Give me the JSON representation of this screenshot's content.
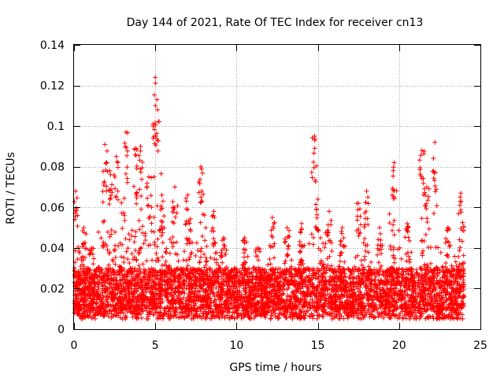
{
  "chart_data": {
    "type": "scatter",
    "title": "Day 144 of 2021, Rate Of TEC Index for receiver cn13",
    "xlabel": "GPS time / hours",
    "ylabel": "ROTI / TECUs",
    "xlim": [
      0,
      25
    ],
    "ylim": [
      0,
      0.14
    ],
    "xticks": [
      0,
      5,
      10,
      15,
      20,
      25
    ],
    "yticks": [
      0,
      0.02,
      0.04,
      0.06,
      0.08,
      0.1,
      0.12,
      0.14
    ],
    "xtick_labels": [
      "0",
      "5",
      "10",
      "15",
      "20",
      "25"
    ],
    "ytick_labels": [
      "0",
      "0.02",
      "0.04",
      "0.06",
      "0.08",
      "0.1",
      "0.12",
      "0.14"
    ],
    "grid": true,
    "marker": "+",
    "color": "#ff0000",
    "series": [
      {
        "name": "ROTI",
        "peaks": [
          {
            "x": 0.1,
            "y": 0.068
          },
          {
            "x": 0.6,
            "y": 0.05
          },
          {
            "x": 1.1,
            "y": 0.04
          },
          {
            "x": 1.9,
            "y": 0.091
          },
          {
            "x": 2.2,
            "y": 0.078
          },
          {
            "x": 2.6,
            "y": 0.085
          },
          {
            "x": 3.2,
            "y": 0.097
          },
          {
            "x": 3.8,
            "y": 0.089
          },
          {
            "x": 4.1,
            "y": 0.09
          },
          {
            "x": 4.6,
            "y": 0.075
          },
          {
            "x": 5.0,
            "y": 0.124
          },
          {
            "x": 5.1,
            "y": 0.113
          },
          {
            "x": 5.4,
            "y": 0.066
          },
          {
            "x": 6.2,
            "y": 0.07
          },
          {
            "x": 7.0,
            "y": 0.066
          },
          {
            "x": 7.8,
            "y": 0.08
          },
          {
            "x": 8.6,
            "y": 0.058
          },
          {
            "x": 9.2,
            "y": 0.045
          },
          {
            "x": 10.5,
            "y": 0.045
          },
          {
            "x": 11.3,
            "y": 0.04
          },
          {
            "x": 12.2,
            "y": 0.055
          },
          {
            "x": 13.1,
            "y": 0.05
          },
          {
            "x": 14.0,
            "y": 0.052
          },
          {
            "x": 14.8,
            "y": 0.095
          },
          {
            "x": 15.0,
            "y": 0.064
          },
          {
            "x": 15.7,
            "y": 0.058
          },
          {
            "x": 16.5,
            "y": 0.05
          },
          {
            "x": 17.5,
            "y": 0.062
          },
          {
            "x": 18.0,
            "y": 0.068
          },
          {
            "x": 18.8,
            "y": 0.05
          },
          {
            "x": 19.7,
            "y": 0.082
          },
          {
            "x": 20.5,
            "y": 0.052
          },
          {
            "x": 21.4,
            "y": 0.088
          },
          {
            "x": 21.7,
            "y": 0.07
          },
          {
            "x": 22.2,
            "y": 0.092
          },
          {
            "x": 23.0,
            "y": 0.05
          },
          {
            "x": 23.8,
            "y": 0.067
          }
        ],
        "typical_range": [
          0.005,
          0.03
        ],
        "x_range": [
          0,
          24
        ]
      }
    ]
  }
}
